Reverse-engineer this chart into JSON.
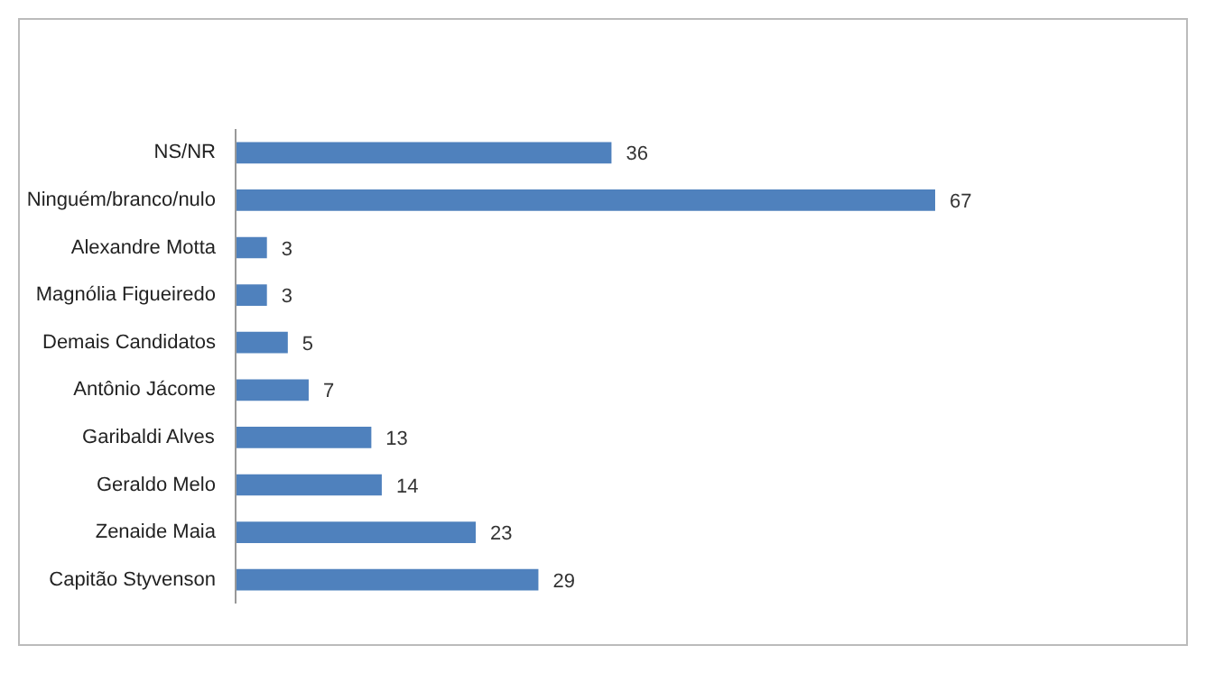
{
  "chart_data": {
    "type": "bar",
    "orientation": "horizontal",
    "categories": [
      "NS/NR",
      "Ninguém/branco/nulo",
      "Alexandre Motta",
      "Magnólia Figueiredo",
      "Demais Candidatos",
      "Antônio Jácome",
      "Garibaldi Alves",
      "Geraldo Melo",
      "Zenaide Maia",
      "Capitão Styvenson"
    ],
    "values": [
      36,
      67,
      3,
      3,
      5,
      7,
      13,
      14,
      23,
      29
    ],
    "color": "#4f81bd",
    "data_labels": true,
    "grid": false
  }
}
